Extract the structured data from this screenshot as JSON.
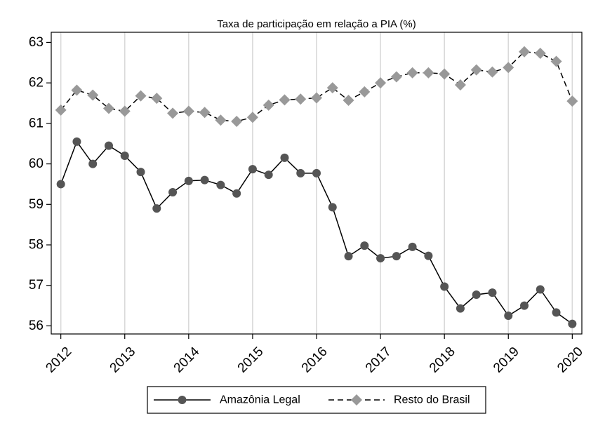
{
  "chart_data": {
    "type": "line",
    "title": "Taxa de participação em relação a PIA (%)",
    "xlabel": "",
    "ylabel": "",
    "x": [
      2012.0,
      2012.25,
      2012.5,
      2012.75,
      2013.0,
      2013.25,
      2013.5,
      2013.75,
      2014.0,
      2014.25,
      2014.5,
      2014.75,
      2015.0,
      2015.25,
      2015.5,
      2015.75,
      2016.0,
      2016.25,
      2016.5,
      2016.75,
      2017.0,
      2017.25,
      2017.5,
      2017.75,
      2018.0,
      2018.25,
      2018.5,
      2018.75,
      2019.0,
      2019.25,
      2019.5,
      2019.75,
      2020.0
    ],
    "xlim": [
      2011.85,
      2020.15
    ],
    "ylim": [
      55.8,
      63.25
    ],
    "xticks": [
      2012,
      2013,
      2014,
      2015,
      2016,
      2017,
      2018,
      2019,
      2020
    ],
    "xtick_labels": [
      "2012",
      "2013",
      "2014",
      "2015",
      "2016",
      "2017",
      "2018",
      "2019",
      "2020"
    ],
    "yticks": [
      56,
      57,
      58,
      59,
      60,
      61,
      62,
      63
    ],
    "ytick_labels": [
      "56",
      "57",
      "58",
      "59",
      "60",
      "61",
      "62",
      "63"
    ],
    "x_grid": true,
    "y_grid": false,
    "legend_position": "bottom",
    "series": [
      {
        "name": "Amazônia Legal",
        "color": "#555555",
        "marker": "circle",
        "line_style": "solid",
        "values": [
          59.5,
          60.55,
          60.0,
          60.45,
          60.2,
          59.8,
          58.9,
          59.3,
          59.58,
          59.6,
          59.48,
          59.27,
          59.87,
          59.73,
          60.15,
          59.77,
          59.77,
          58.93,
          57.72,
          57.98,
          57.67,
          57.72,
          57.95,
          57.73,
          56.97,
          56.43,
          56.77,
          56.82,
          56.25,
          56.5,
          56.9,
          56.33,
          56.05
        ]
      },
      {
        "name": "Resto do Brasil",
        "color": "#999999",
        "marker": "diamond",
        "line_style": "dashed",
        "values": [
          61.33,
          61.82,
          61.7,
          61.37,
          61.3,
          61.68,
          61.62,
          61.25,
          61.3,
          61.27,
          61.08,
          61.05,
          61.15,
          61.45,
          61.58,
          61.6,
          61.63,
          61.88,
          61.57,
          61.78,
          62.0,
          62.15,
          62.25,
          62.25,
          62.22,
          61.95,
          62.32,
          62.27,
          62.38,
          62.77,
          62.73,
          62.53,
          61.55
        ]
      }
    ]
  }
}
